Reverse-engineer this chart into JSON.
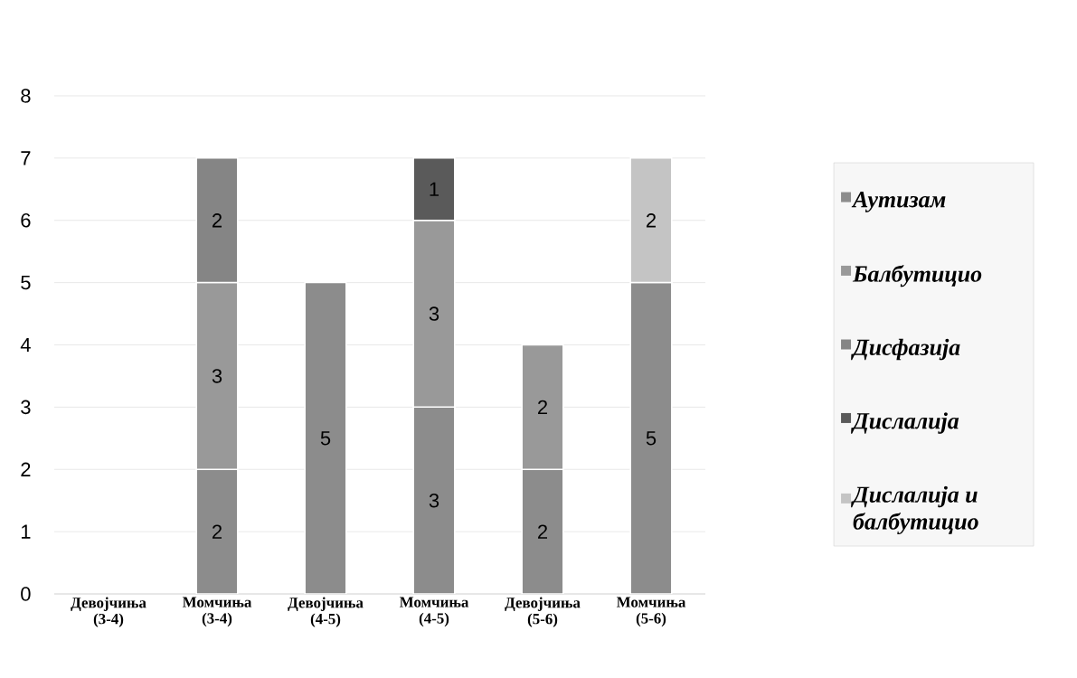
{
  "chart_data": {
    "type": "bar",
    "stacked": true,
    "categories": [
      "Девојчиња (3-4)",
      "Момчиња (3-4)",
      "Девојчиња (4-5)",
      "Момчиња (4-5)",
      "Девојчиња (5-6)",
      "Момчиња (5-6)"
    ],
    "series": [
      {
        "name": "Аутизам",
        "color": "#8c8c8c",
        "values": [
          null,
          2,
          5,
          3,
          2,
          5
        ]
      },
      {
        "name": "Балбутицио",
        "color": "#999999",
        "values": [
          null,
          3,
          null,
          3,
          2,
          null
        ]
      },
      {
        "name": "Дисфазија",
        "color": "#858585",
        "values": [
          null,
          2,
          null,
          null,
          null,
          null
        ]
      },
      {
        "name": "Дислалија",
        "color": "#5a5a5a",
        "values": [
          null,
          null,
          null,
          1,
          null,
          null
        ]
      },
      {
        "name": "Дислалија и балбутицио",
        "color": "#c4c4c4",
        "values": [
          null,
          null,
          null,
          null,
          null,
          2
        ]
      }
    ],
    "ylim": [
      0,
      8
    ],
    "yticks": [
      0,
      1,
      2,
      3,
      4,
      5,
      6,
      7,
      8
    ],
    "grid": "y",
    "legend": "right",
    "data_labels": true
  }
}
